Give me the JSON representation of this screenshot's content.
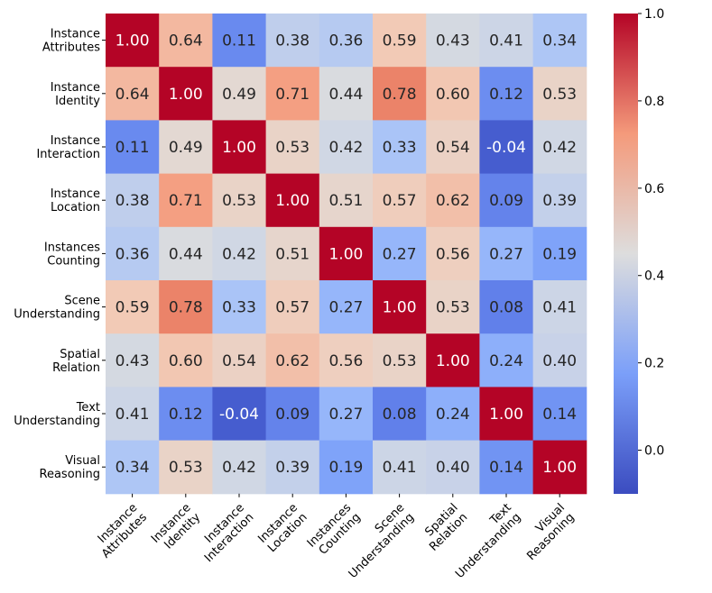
{
  "chart_data": {
    "type": "heatmap",
    "title": "",
    "xlabel": "",
    "ylabel": "",
    "row_labels": [
      [
        "Instance",
        "Attributes"
      ],
      [
        "Instance",
        "Identity"
      ],
      [
        "Instance",
        "Interaction"
      ],
      [
        "Instance",
        "Location"
      ],
      [
        "Instances",
        "Counting"
      ],
      [
        "Scene",
        "Understanding"
      ],
      [
        "Spatial",
        "Relation"
      ],
      [
        "Text",
        "Understanding"
      ],
      [
        "Visual",
        "Reasoning"
      ]
    ],
    "col_labels": [
      [
        "Instance",
        "Attributes"
      ],
      [
        "Instance",
        "Identity"
      ],
      [
        "Instance",
        "Interaction"
      ],
      [
        "Instance",
        "Location"
      ],
      [
        "Instances",
        "Counting"
      ],
      [
        "Scene",
        "Understanding"
      ],
      [
        "Spatial",
        "Relation"
      ],
      [
        "Text",
        "Understanding"
      ],
      [
        "Visual",
        "Reasoning"
      ]
    ],
    "values": [
      [
        1.0,
        0.64,
        0.11,
        0.38,
        0.36,
        0.59,
        0.43,
        0.41,
        0.34
      ],
      [
        0.64,
        1.0,
        0.49,
        0.71,
        0.44,
        0.78,
        0.6,
        0.12,
        0.53
      ],
      [
        0.11,
        0.49,
        1.0,
        0.53,
        0.42,
        0.33,
        0.54,
        -0.04,
        0.42
      ],
      [
        0.38,
        0.71,
        0.53,
        1.0,
        0.51,
        0.57,
        0.62,
        0.09,
        0.39
      ],
      [
        0.36,
        0.44,
        0.42,
        0.51,
        1.0,
        0.27,
        0.56,
        0.27,
        0.19
      ],
      [
        0.59,
        0.78,
        0.33,
        0.57,
        0.27,
        1.0,
        0.53,
        0.08,
        0.41
      ],
      [
        0.43,
        0.6,
        0.54,
        0.62,
        0.56,
        0.53,
        1.0,
        0.24,
        0.4
      ],
      [
        0.41,
        0.12,
        -0.04,
        0.09,
        0.27,
        0.08,
        0.24,
        1.0,
        0.14
      ],
      [
        0.34,
        0.53,
        0.42,
        0.39,
        0.19,
        0.41,
        0.4,
        0.14,
        1.0
      ]
    ],
    "colormap": "coolwarm",
    "vmin": -0.1,
    "vmax": 1.0,
    "colorbar_ticks": [
      "0.0",
      "0.2",
      "0.4",
      "0.6",
      "0.8",
      "1.0"
    ],
    "colorbar_tick_values": [
      0.0,
      0.2,
      0.4,
      0.6,
      0.8,
      1.0
    ],
    "grid": false,
    "legend": "colorbar-right"
  }
}
